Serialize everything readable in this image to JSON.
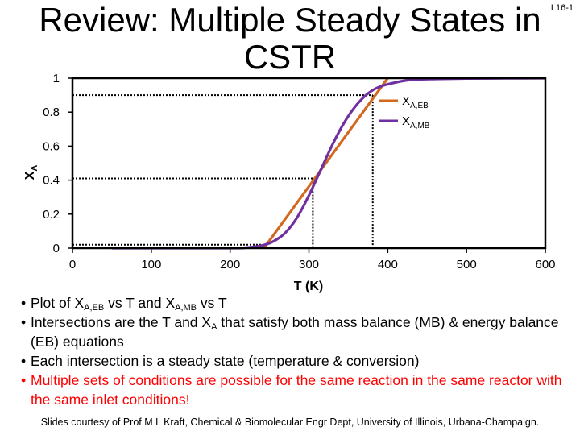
{
  "slide_id": "L16-1",
  "title_line1": "Review: Multiple Steady States in",
  "title_line2": "CSTR",
  "chart_data": {
    "type": "line",
    "xlabel": "T (K)",
    "ylabel_main": "X",
    "ylabel_sub": "A",
    "xlim": [
      0,
      600
    ],
    "ylim": [
      0,
      1
    ],
    "xticks": [
      0,
      100,
      200,
      300,
      400,
      500,
      600
    ],
    "yticks": [
      0,
      0.2,
      0.4,
      0.6,
      0.8,
      1
    ],
    "legend_position": "top-right",
    "series": [
      {
        "name_main": "X",
        "name_sub": "A,EB",
        "color": "#d2691e",
        "x": [
          243,
          400
        ],
        "y": [
          0,
          1
        ]
      },
      {
        "name_main": "X",
        "name_sub": "A,MB",
        "color": "#7030a0",
        "x": [
          50,
          200,
          220,
          240,
          255,
          270,
          285,
          300,
          315,
          330,
          345,
          360,
          375,
          390,
          410,
          430,
          460,
          500,
          550,
          600
        ],
        "y": [
          0,
          0,
          0.003,
          0.015,
          0.04,
          0.09,
          0.18,
          0.31,
          0.46,
          0.61,
          0.74,
          0.84,
          0.91,
          0.95,
          0.975,
          0.99,
          0.995,
          0.998,
          0.999,
          1.0
        ]
      }
    ],
    "steady_states": [
      {
        "T": 246,
        "X": 0.02
      },
      {
        "T": 305,
        "X": 0.41
      },
      {
        "T": 381,
        "X": 0.9
      }
    ]
  },
  "bullets": [
    {
      "parts": [
        "Plot of X",
        "A,EB",
        " vs T and X",
        "A,MB",
        " vs T"
      ]
    },
    {
      "parts": [
        "Intersections are the T and X",
        "A",
        " that satisfy both mass balance (MB) & energy balance (EB) equations"
      ]
    },
    {
      "underlined": "Each intersection is a steady state",
      "rest": " (temperature & conversion)"
    },
    {
      "text": "Multiple sets of conditions are possible for the same reaction in the same reactor with the same inlet conditions!",
      "color": "#ff0000"
    }
  ],
  "footer": "Slides courtesy of Prof M L Kraft, Chemical & Biomolecular Engr Dept, University of Illinois, Urbana-Champaign."
}
